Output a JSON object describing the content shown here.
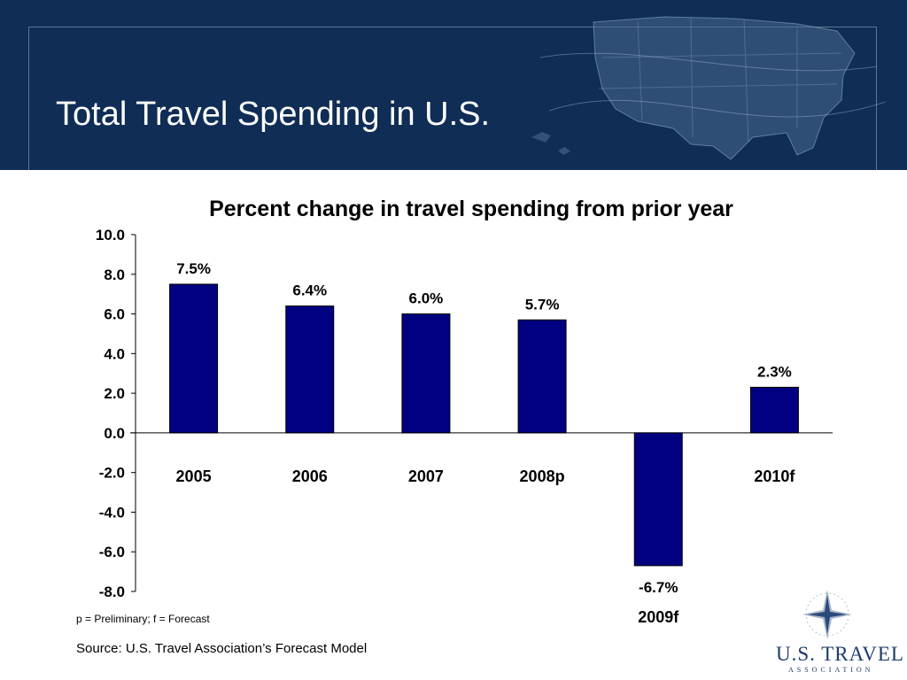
{
  "slide": {
    "title": "Total Travel Spending in U.S.",
    "footnote": "p = Preliminary; f = Forecast",
    "source": "Source:  U.S. Travel Association’s Forecast Model"
  },
  "logo": {
    "name": "U.S. TRAVEL",
    "sub": "ASSOCIATION"
  },
  "colors": {
    "header": "#0f2d55",
    "bar": "#000080"
  },
  "chart_data": {
    "type": "bar",
    "title": "Percent change in travel spending from prior year",
    "categories": [
      "2005",
      "2006",
      "2007",
      "2008p",
      "2009f",
      "2010f"
    ],
    "values": [
      7.5,
      6.4,
      6.0,
      5.7,
      -6.7,
      2.3
    ],
    "data_labels": [
      "7.5%",
      "6.4%",
      "6.0%",
      "5.7%",
      "-6.7%",
      "2.3%"
    ],
    "y_ticks": [
      "10.0",
      "8.0",
      "6.0",
      "4.0",
      "2.0",
      "0.0",
      "-2.0",
      "-4.0",
      "-6.0",
      "-8.0"
    ],
    "ylim": [
      -8,
      10
    ],
    "xlabel": "",
    "ylabel": "",
    "grid": false,
    "legend": "none"
  }
}
